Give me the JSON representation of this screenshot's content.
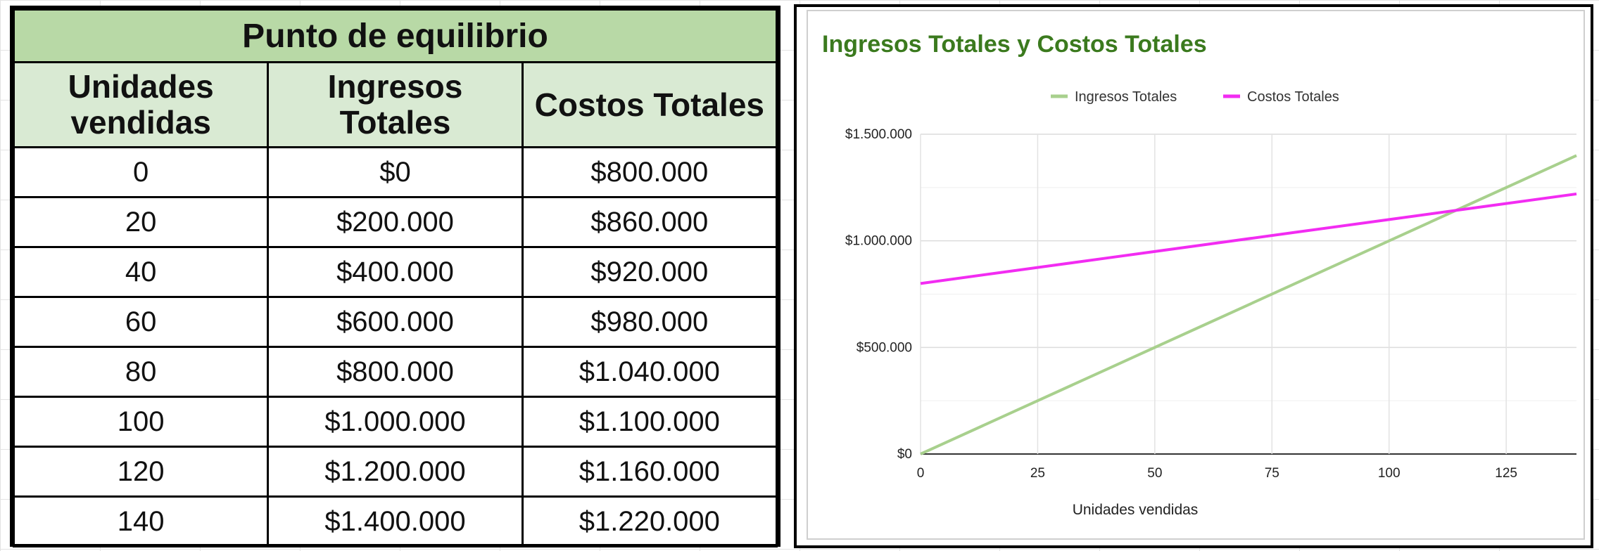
{
  "table": {
    "title": "Punto de equilibrio",
    "headers": [
      "Unidades vendidas",
      "Ingresos Totales",
      "Costos Totales"
    ],
    "rows": [
      [
        "0",
        "$0",
        "$800.000"
      ],
      [
        "20",
        "$200.000",
        "$860.000"
      ],
      [
        "40",
        "$400.000",
        "$920.000"
      ],
      [
        "60",
        "$600.000",
        "$980.000"
      ],
      [
        "80",
        "$800.000",
        "$1.040.000"
      ],
      [
        "100",
        "$1.000.000",
        "$1.100.000"
      ],
      [
        "120",
        "$1.200.000",
        "$1.160.000"
      ],
      [
        "140",
        "$1.400.000",
        "$1.220.000"
      ]
    ]
  },
  "chart_data": {
    "type": "line",
    "title": "Ingresos Totales y Costos Totales",
    "xlabel": "Unidades vendidas",
    "ylabel": "",
    "x": [
      0,
      20,
      40,
      60,
      80,
      100,
      120,
      140
    ],
    "xlim": [
      0,
      140
    ],
    "xticks": [
      0,
      25,
      50,
      75,
      100,
      125
    ],
    "ylim": [
      0,
      1500000
    ],
    "yticks": [
      0,
      500000,
      1000000,
      1500000
    ],
    "ytick_labels": [
      "$0",
      "$500.000",
      "$1.000.000",
      "$1.500.000"
    ],
    "grid": true,
    "legend_position": "top-center",
    "series": [
      {
        "name": "Ingresos Totales",
        "color": "#a8d08d",
        "values": [
          0,
          200000,
          400000,
          600000,
          800000,
          1000000,
          1200000,
          1400000
        ]
      },
      {
        "name": "Costos Totales",
        "color": "#f22cf2",
        "values": [
          800000,
          860000,
          920000,
          980000,
          1040000,
          1100000,
          1160000,
          1220000
        ]
      }
    ]
  }
}
